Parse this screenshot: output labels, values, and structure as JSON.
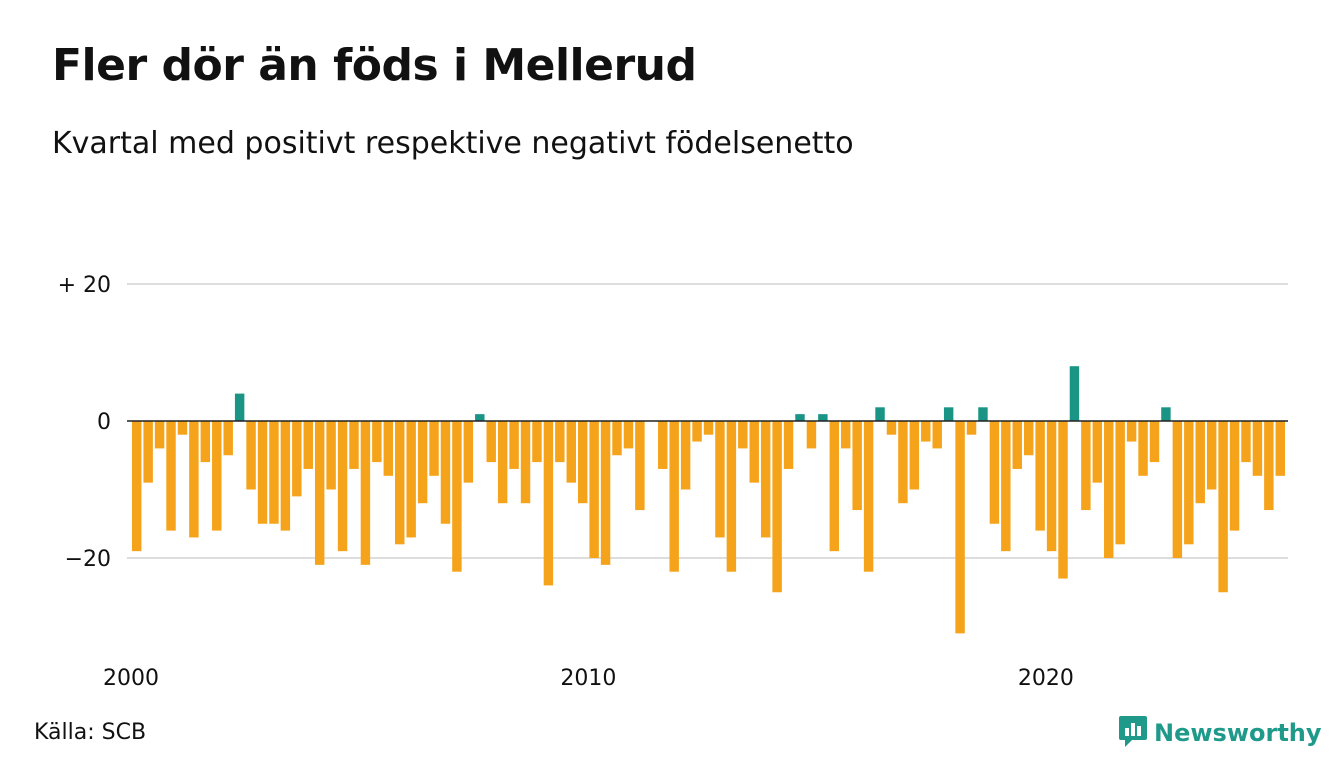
{
  "title": "Fler dör än föds i Mellerud",
  "subtitle": "Kvartal med positivt respektive negativt födelsenetto",
  "source": "Källa: SCB",
  "brand": "Newsworthy",
  "brand_icon": "newsworthy-logo-icon",
  "colors": {
    "positive": "#1a9585",
    "negative": "#f5a31a",
    "grid": "#dddddd",
    "brand": "#1f9a8a"
  },
  "chart_data": {
    "type": "bar",
    "ylim": [
      -31,
      20
    ],
    "yticks": [
      20,
      0,
      -20
    ],
    "ytick_labels": [
      "+ 20",
      "0",
      "−20"
    ],
    "xlim": [
      2000,
      2025.25
    ],
    "xticks": [
      2000,
      2010,
      2020
    ],
    "xtick_labels": [
      "2000",
      "2010",
      "2020"
    ],
    "grid": true,
    "x": [
      2000.0,
      2000.25,
      2000.5,
      2000.75,
      2001.0,
      2001.25,
      2001.5,
      2001.75,
      2002.0,
      2002.25,
      2002.5,
      2002.75,
      2003.0,
      2003.25,
      2003.5,
      2003.75,
      2004.0,
      2004.25,
      2004.5,
      2004.75,
      2005.0,
      2005.25,
      2005.5,
      2005.75,
      2006.0,
      2006.25,
      2006.5,
      2006.75,
      2007.0,
      2007.25,
      2007.5,
      2007.75,
      2008.0,
      2008.25,
      2008.5,
      2008.75,
      2009.0,
      2009.25,
      2009.5,
      2009.75,
      2010.0,
      2010.25,
      2010.5,
      2010.75,
      2011.0,
      2011.25,
      2011.5,
      2011.75,
      2012.0,
      2012.25,
      2012.5,
      2012.75,
      2013.0,
      2013.25,
      2013.5,
      2013.75,
      2014.0,
      2014.25,
      2014.5,
      2014.75,
      2015.0,
      2015.25,
      2015.5,
      2015.75,
      2016.0,
      2016.25,
      2016.5,
      2016.75,
      2017.0,
      2017.25,
      2017.5,
      2017.75,
      2018.0,
      2018.25,
      2018.5,
      2018.75,
      2019.0,
      2019.25,
      2019.5,
      2019.75,
      2020.0,
      2020.25,
      2020.5,
      2020.75,
      2021.0,
      2021.25,
      2021.5,
      2021.75,
      2022.0,
      2022.25,
      2022.5,
      2022.75,
      2023.0,
      2023.25,
      2023.5,
      2023.75,
      2024.0,
      2024.25,
      2024.5,
      2024.75,
      2025.0
    ],
    "values": [
      -19,
      -9,
      -4,
      -16,
      -2,
      -17,
      -6,
      -16,
      -5,
      4,
      -10,
      -15,
      -15,
      -16,
      -11,
      -7,
      -21,
      -10,
      -19,
      -7,
      -21,
      -6,
      -8,
      -18,
      -17,
      -12,
      -8,
      -15,
      -22,
      -9,
      1,
      -6,
      -12,
      -7,
      -12,
      -6,
      -24,
      -6,
      -9,
      -12,
      -20,
      -21,
      -5,
      -4,
      -13,
      0,
      -7,
      -22,
      -10,
      -3,
      -2,
      -17,
      -22,
      -4,
      -9,
      -17,
      -25,
      -7,
      1,
      -4,
      1,
      -19,
      -4,
      -13,
      -22,
      2,
      -2,
      -12,
      -10,
      -3,
      -4,
      2,
      -31,
      -2,
      2,
      -15,
      -19,
      -7,
      -5,
      -16,
      -19,
      -23,
      8,
      -13,
      -9,
      -20,
      -18,
      -3,
      -8,
      -6,
      2,
      -20,
      -18,
      -12,
      -10,
      -25,
      -16,
      -6,
      -8,
      -13,
      -8
    ]
  }
}
